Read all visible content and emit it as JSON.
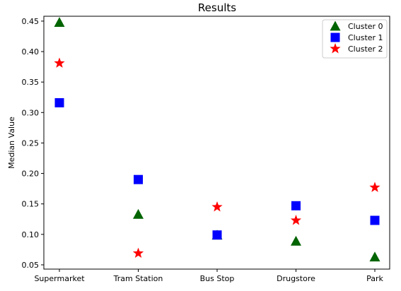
{
  "chart_data": {
    "type": "scatter",
    "title": "Results",
    "xlabel": "",
    "ylabel": "Median Value",
    "categories": [
      "Supermarket",
      "Tram Station",
      "Bus Stop",
      "Drugstore",
      "Park"
    ],
    "ylim": [
      0.043,
      0.458
    ],
    "yticks": [
      "0.05",
      "0.10",
      "0.15",
      "0.20",
      "0.25",
      "0.30",
      "0.35",
      "0.40",
      "0.45"
    ],
    "grid": false,
    "legend_position": "top-right",
    "series": [
      {
        "name": "Cluster 0",
        "marker": "triangle",
        "color": "#006400",
        "values": [
          0.448,
          0.133,
          0.099,
          0.089,
          0.063
        ]
      },
      {
        "name": "Cluster 1",
        "marker": "square",
        "color": "#0000ff",
        "values": [
          0.316,
          0.19,
          0.099,
          0.147,
          0.123
        ]
      },
      {
        "name": "Cluster 2",
        "marker": "star",
        "color": "#ff0000",
        "values": [
          0.381,
          0.069,
          0.145,
          0.123,
          0.177
        ]
      }
    ]
  }
}
